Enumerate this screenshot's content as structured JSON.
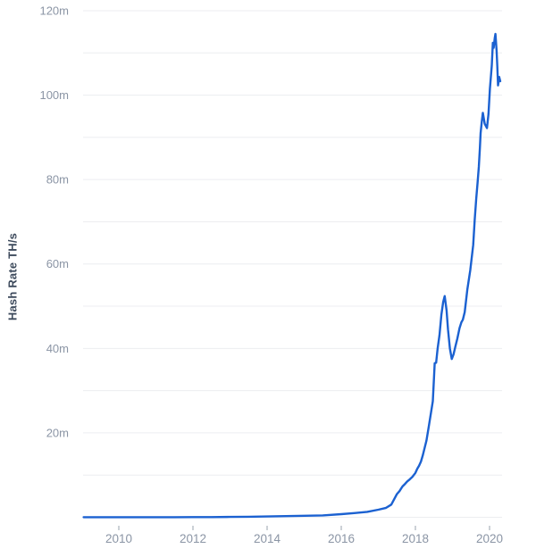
{
  "chart_data": {
    "type": "line",
    "title": "",
    "xlabel": "",
    "ylabel": "Hash Rate TH/s",
    "unit_suffix": "m",
    "ylim": [
      0,
      120
    ],
    "xlim": [
      2009.05,
      2020.35
    ],
    "grid": "horizontal-only",
    "legend": "none",
    "y_ticks": [
      {
        "value": 20,
        "label": "20m"
      },
      {
        "value": 40,
        "label": "40m"
      },
      {
        "value": 60,
        "label": "60m"
      },
      {
        "value": 80,
        "label": "80m"
      },
      {
        "value": 100,
        "label": "100m"
      },
      {
        "value": 120,
        "label": "120m"
      }
    ],
    "y_gridline_step": 10,
    "x_ticks": [
      {
        "value": 2010,
        "label": "2010"
      },
      {
        "value": 2012,
        "label": "2012"
      },
      {
        "value": 2014,
        "label": "2014"
      },
      {
        "value": 2016,
        "label": "2016"
      },
      {
        "value": 2018,
        "label": "2018"
      },
      {
        "value": 2020,
        "label": "2020"
      }
    ],
    "series": [
      {
        "name": "hash-rate",
        "points": [
          [
            2009.05,
            0.02
          ],
          [
            2009.5,
            0.02
          ],
          [
            2010,
            0.02
          ],
          [
            2010.5,
            0.02
          ],
          [
            2011,
            0.03
          ],
          [
            2011.5,
            0.03
          ],
          [
            2012,
            0.04
          ],
          [
            2012.5,
            0.05
          ],
          [
            2013,
            0.08
          ],
          [
            2013.5,
            0.12
          ],
          [
            2014,
            0.2
          ],
          [
            2014.5,
            0.28
          ],
          [
            2015,
            0.35
          ],
          [
            2015.5,
            0.45
          ],
          [
            2016,
            0.75
          ],
          [
            2016.35,
            1.0
          ],
          [
            2016.7,
            1.3
          ],
          [
            2017,
            1.8
          ],
          [
            2017.2,
            2.2
          ],
          [
            2017.35,
            3.0
          ],
          [
            2017.5,
            5.5
          ],
          [
            2017.57,
            6.2
          ],
          [
            2017.65,
            7.3
          ],
          [
            2017.72,
            7.9
          ],
          [
            2017.78,
            8.5
          ],
          [
            2017.85,
            9.0
          ],
          [
            2017.92,
            9.6
          ],
          [
            2018.0,
            10.5
          ],
          [
            2018.05,
            11.5
          ],
          [
            2018.1,
            12.2
          ],
          [
            2018.15,
            13.2
          ],
          [
            2018.2,
            14.7
          ],
          [
            2018.25,
            16.5
          ],
          [
            2018.3,
            18.2
          ],
          [
            2018.36,
            21.4
          ],
          [
            2018.42,
            24.7
          ],
          [
            2018.47,
            27.5
          ],
          [
            2018.5,
            33
          ],
          [
            2018.52,
            36.5
          ],
          [
            2018.56,
            36.6
          ],
          [
            2018.6,
            40
          ],
          [
            2018.65,
            43.2
          ],
          [
            2018.7,
            48
          ],
          [
            2018.75,
            51
          ],
          [
            2018.79,
            52.4
          ],
          [
            2018.84,
            49
          ],
          [
            2018.88,
            44.5
          ],
          [
            2018.93,
            40
          ],
          [
            2018.98,
            37.5
          ],
          [
            2019.03,
            38.6
          ],
          [
            2019.08,
            40.5
          ],
          [
            2019.13,
            42.3
          ],
          [
            2019.19,
            44.8
          ],
          [
            2019.24,
            46.2
          ],
          [
            2019.28,
            46.8
          ],
          [
            2019.33,
            48.6
          ],
          [
            2019.4,
            53.9
          ],
          [
            2019.48,
            58.5
          ],
          [
            2019.56,
            64.5
          ],
          [
            2019.6,
            70.5
          ],
          [
            2019.64,
            75.5
          ],
          [
            2019.68,
            79.5
          ],
          [
            2019.71,
            83
          ],
          [
            2019.74,
            87.5
          ],
          [
            2019.76,
            91
          ],
          [
            2019.79,
            93.7
          ],
          [
            2019.82,
            95.8
          ],
          [
            2019.87,
            93.2
          ],
          [
            2019.93,
            92.2
          ],
          [
            2019.97,
            95.5
          ],
          [
            2020.01,
            101.5
          ],
          [
            2020.06,
            107
          ],
          [
            2020.09,
            112.4
          ],
          [
            2020.11,
            111.2
          ],
          [
            2020.14,
            113.5
          ],
          [
            2020.16,
            114.5
          ],
          [
            2020.19,
            110.5
          ],
          [
            2020.21,
            106.8
          ],
          [
            2020.23,
            102.3
          ],
          [
            2020.26,
            104.3
          ],
          [
            2020.29,
            103.3
          ]
        ]
      }
    ],
    "colors": {
      "line": "#1b61d1",
      "gridline": "#ecedf0",
      "tick_label": "#8b95a5",
      "tick_mark": "#9aa3ae",
      "axis_title": "#3d4a5c",
      "background": "#ffffff"
    }
  }
}
